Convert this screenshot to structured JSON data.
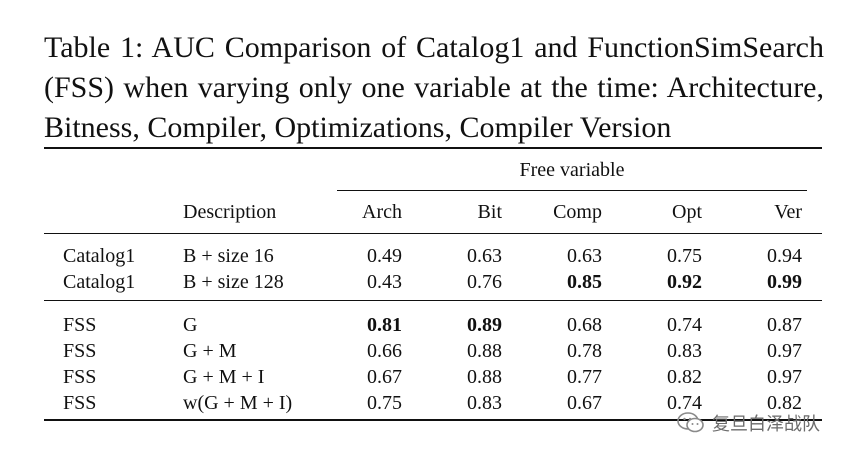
{
  "caption": "Table 1: AUC Comparison of Catalog1 and FunctionSimSearch (FSS) when varying only one variable at the time: Architecture, Bitness, Compiler, Optimizations, Compiler Version",
  "table": {
    "group_header": "Free variable",
    "columns": [
      "",
      "Description",
      "Arch",
      "Bit",
      "Comp",
      "Opt",
      "Ver"
    ],
    "rows": [
      {
        "method": "Catalog1",
        "desc": "B + size 16",
        "arch": "0.49",
        "bit": "0.63",
        "comp": "0.63",
        "opt": "0.75",
        "ver": "0.94",
        "bold": []
      },
      {
        "method": "Catalog1",
        "desc": "B + size 128",
        "arch": "0.43",
        "bit": "0.76",
        "comp": "0.85",
        "opt": "0.92",
        "ver": "0.99",
        "bold": [
          "comp",
          "opt",
          "ver"
        ]
      },
      {
        "method": "FSS",
        "desc": "G",
        "arch": "0.81",
        "bit": "0.89",
        "comp": "0.68",
        "opt": "0.74",
        "ver": "0.87",
        "bold": [
          "arch",
          "bit"
        ]
      },
      {
        "method": "FSS",
        "desc": "G + M",
        "arch": "0.66",
        "bit": "0.88",
        "comp": "0.78",
        "opt": "0.83",
        "ver": "0.97",
        "bold": []
      },
      {
        "method": "FSS",
        "desc": "G + M + I",
        "arch": "0.67",
        "bit": "0.88",
        "comp": "0.77",
        "opt": "0.82",
        "ver": "0.97",
        "bold": []
      },
      {
        "method": "FSS",
        "desc": "w(G + M + I)",
        "arch": "0.75",
        "bit": "0.83",
        "comp": "0.67",
        "opt": "0.74",
        "ver": "0.82",
        "bold": []
      }
    ]
  },
  "watermark": {
    "text": "复旦白泽战队",
    "icon": "wechat-icon"
  }
}
